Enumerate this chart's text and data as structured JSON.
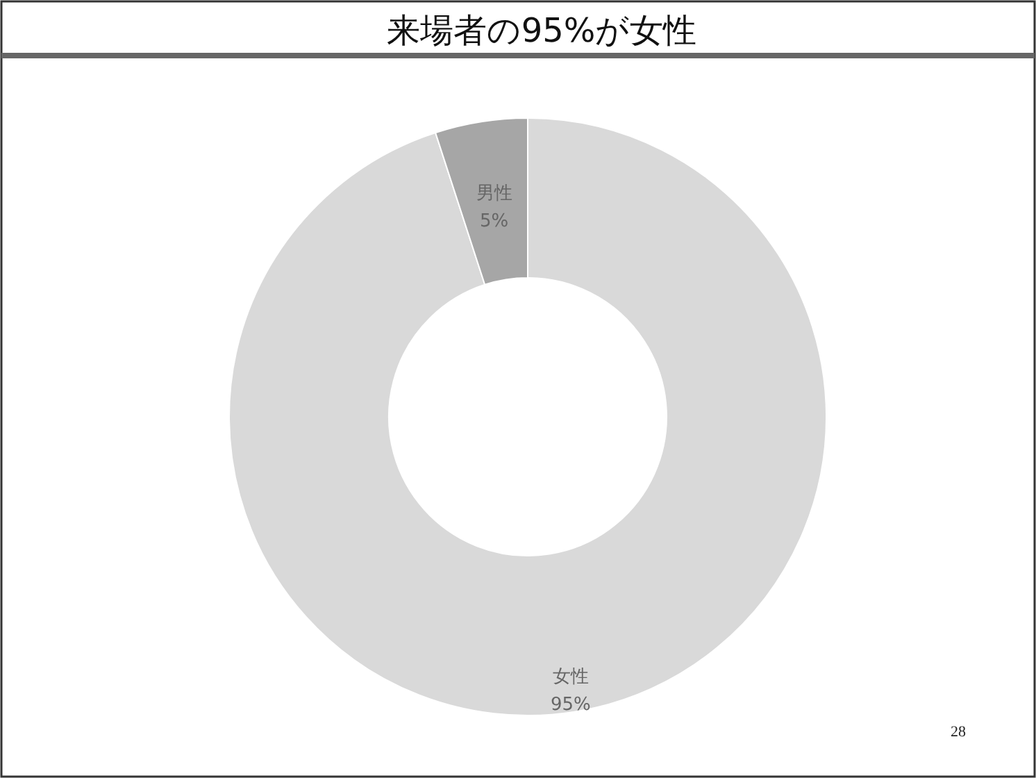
{
  "chart_data": {
    "type": "donut",
    "title": "来場者の95%が女性",
    "categories": [
      "女性",
      "男性"
    ],
    "values": [
      95,
      5
    ],
    "colors": [
      "#d9d9d9",
      "#a6a6a6"
    ],
    "value_labels": [
      "95%",
      "5%"
    ],
    "annotations": [
      "28"
    ]
  }
}
